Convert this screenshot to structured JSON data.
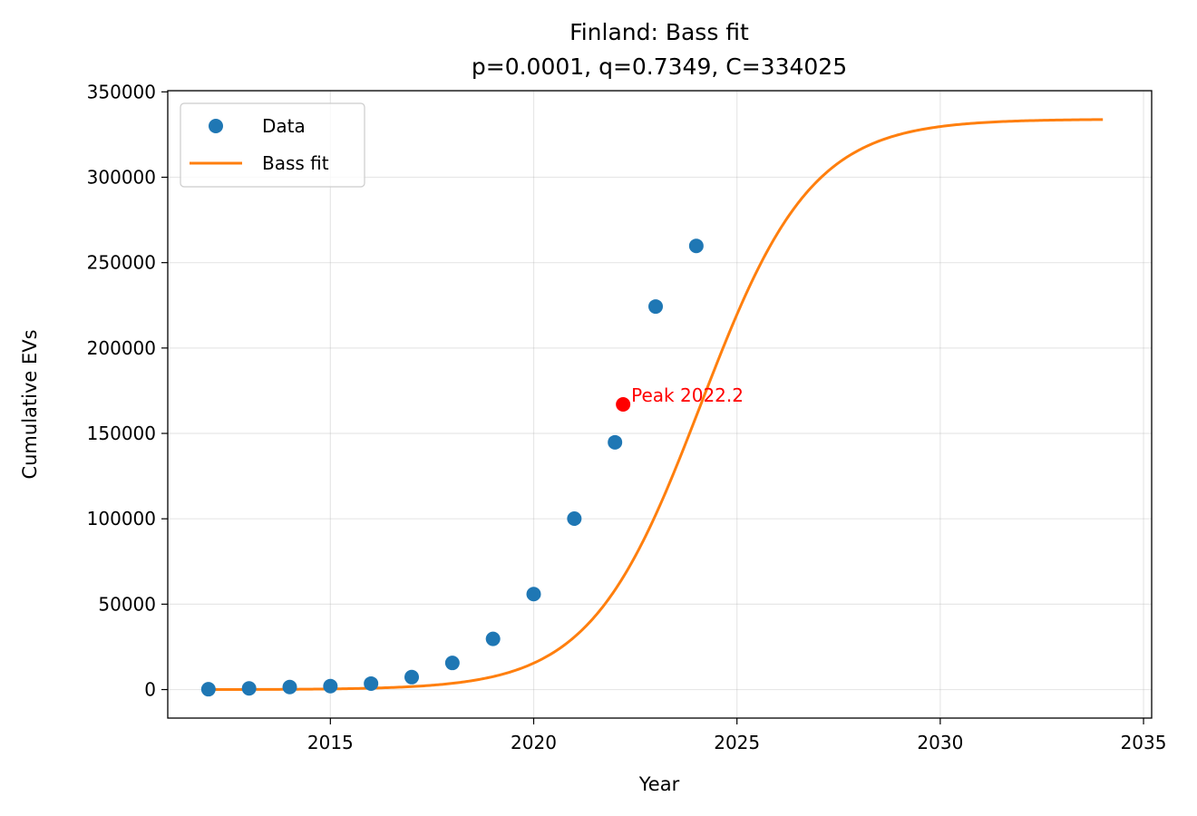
{
  "chart_data": {
    "type": "scatter",
    "title": "Finland: Bass fit",
    "subtitle": "p=0.0001, q=0.7349, C=334025",
    "xlabel": "Year",
    "ylabel": "Cumulative EVs",
    "xlim": [
      2011,
      2035.2
    ],
    "ylim": [
      -16700,
      350700
    ],
    "xticks": [
      2015,
      2020,
      2025,
      2030,
      2035
    ],
    "yticks": [
      0,
      50000,
      100000,
      150000,
      200000,
      250000,
      300000,
      350000
    ],
    "grid": true,
    "legend_position": "upper-left",
    "series": [
      {
        "name": "Data",
        "kind": "scatter",
        "color": "#1f77b4",
        "x": [
          2012,
          2013,
          2014,
          2015,
          2016,
          2017,
          2018,
          2019,
          2020,
          2021,
          2022,
          2023,
          2024
        ],
        "y": [
          200,
          700,
          1500,
          2000,
          3500,
          7300,
          15600,
          29700,
          55900,
          100100,
          144800,
          224300,
          259800
        ]
      },
      {
        "name": "Bass fit",
        "kind": "line",
        "color": "#ff7f0e",
        "model": {
          "p": 0.0001,
          "q": 0.7349,
          "C": 334025,
          "t0": 2012,
          "x_end": 2034
        }
      }
    ],
    "annotations": [
      {
        "text": "Peak 2022.2",
        "x": 2022.2,
        "y": 167000,
        "color": "#ff0000"
      }
    ]
  }
}
